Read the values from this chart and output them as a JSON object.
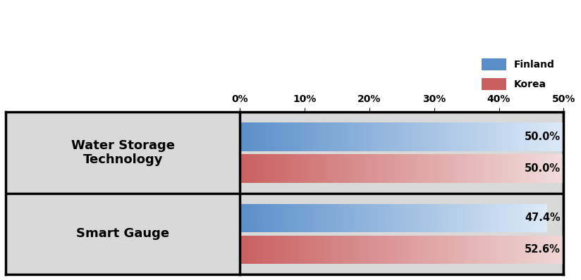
{
  "categories": [
    "Water Storage\nTechnology",
    "Smart Gauge"
  ],
  "finland_values": [
    50.0,
    47.4
  ],
  "korea_values": [
    50.0,
    52.6
  ],
  "finland_label": "Finland",
  "korea_label": "Korea",
  "finland_color_start": "#5b8fc9",
  "finland_color_end": "#dce9f7",
  "korea_color_start": "#c96060",
  "korea_color_end": "#f2dcdc",
  "bg_color": "#d9d9d9",
  "xlim_max": 50,
  "xticks": [
    0,
    10,
    20,
    30,
    40,
    50
  ],
  "xtick_labels": [
    "0%",
    "10%",
    "20%",
    "30%",
    "40%",
    "50%"
  ],
  "label_fontsize": 10,
  "category_fontsize": 13,
  "value_label_fontsize": 10.5,
  "legend_fontsize": 10
}
